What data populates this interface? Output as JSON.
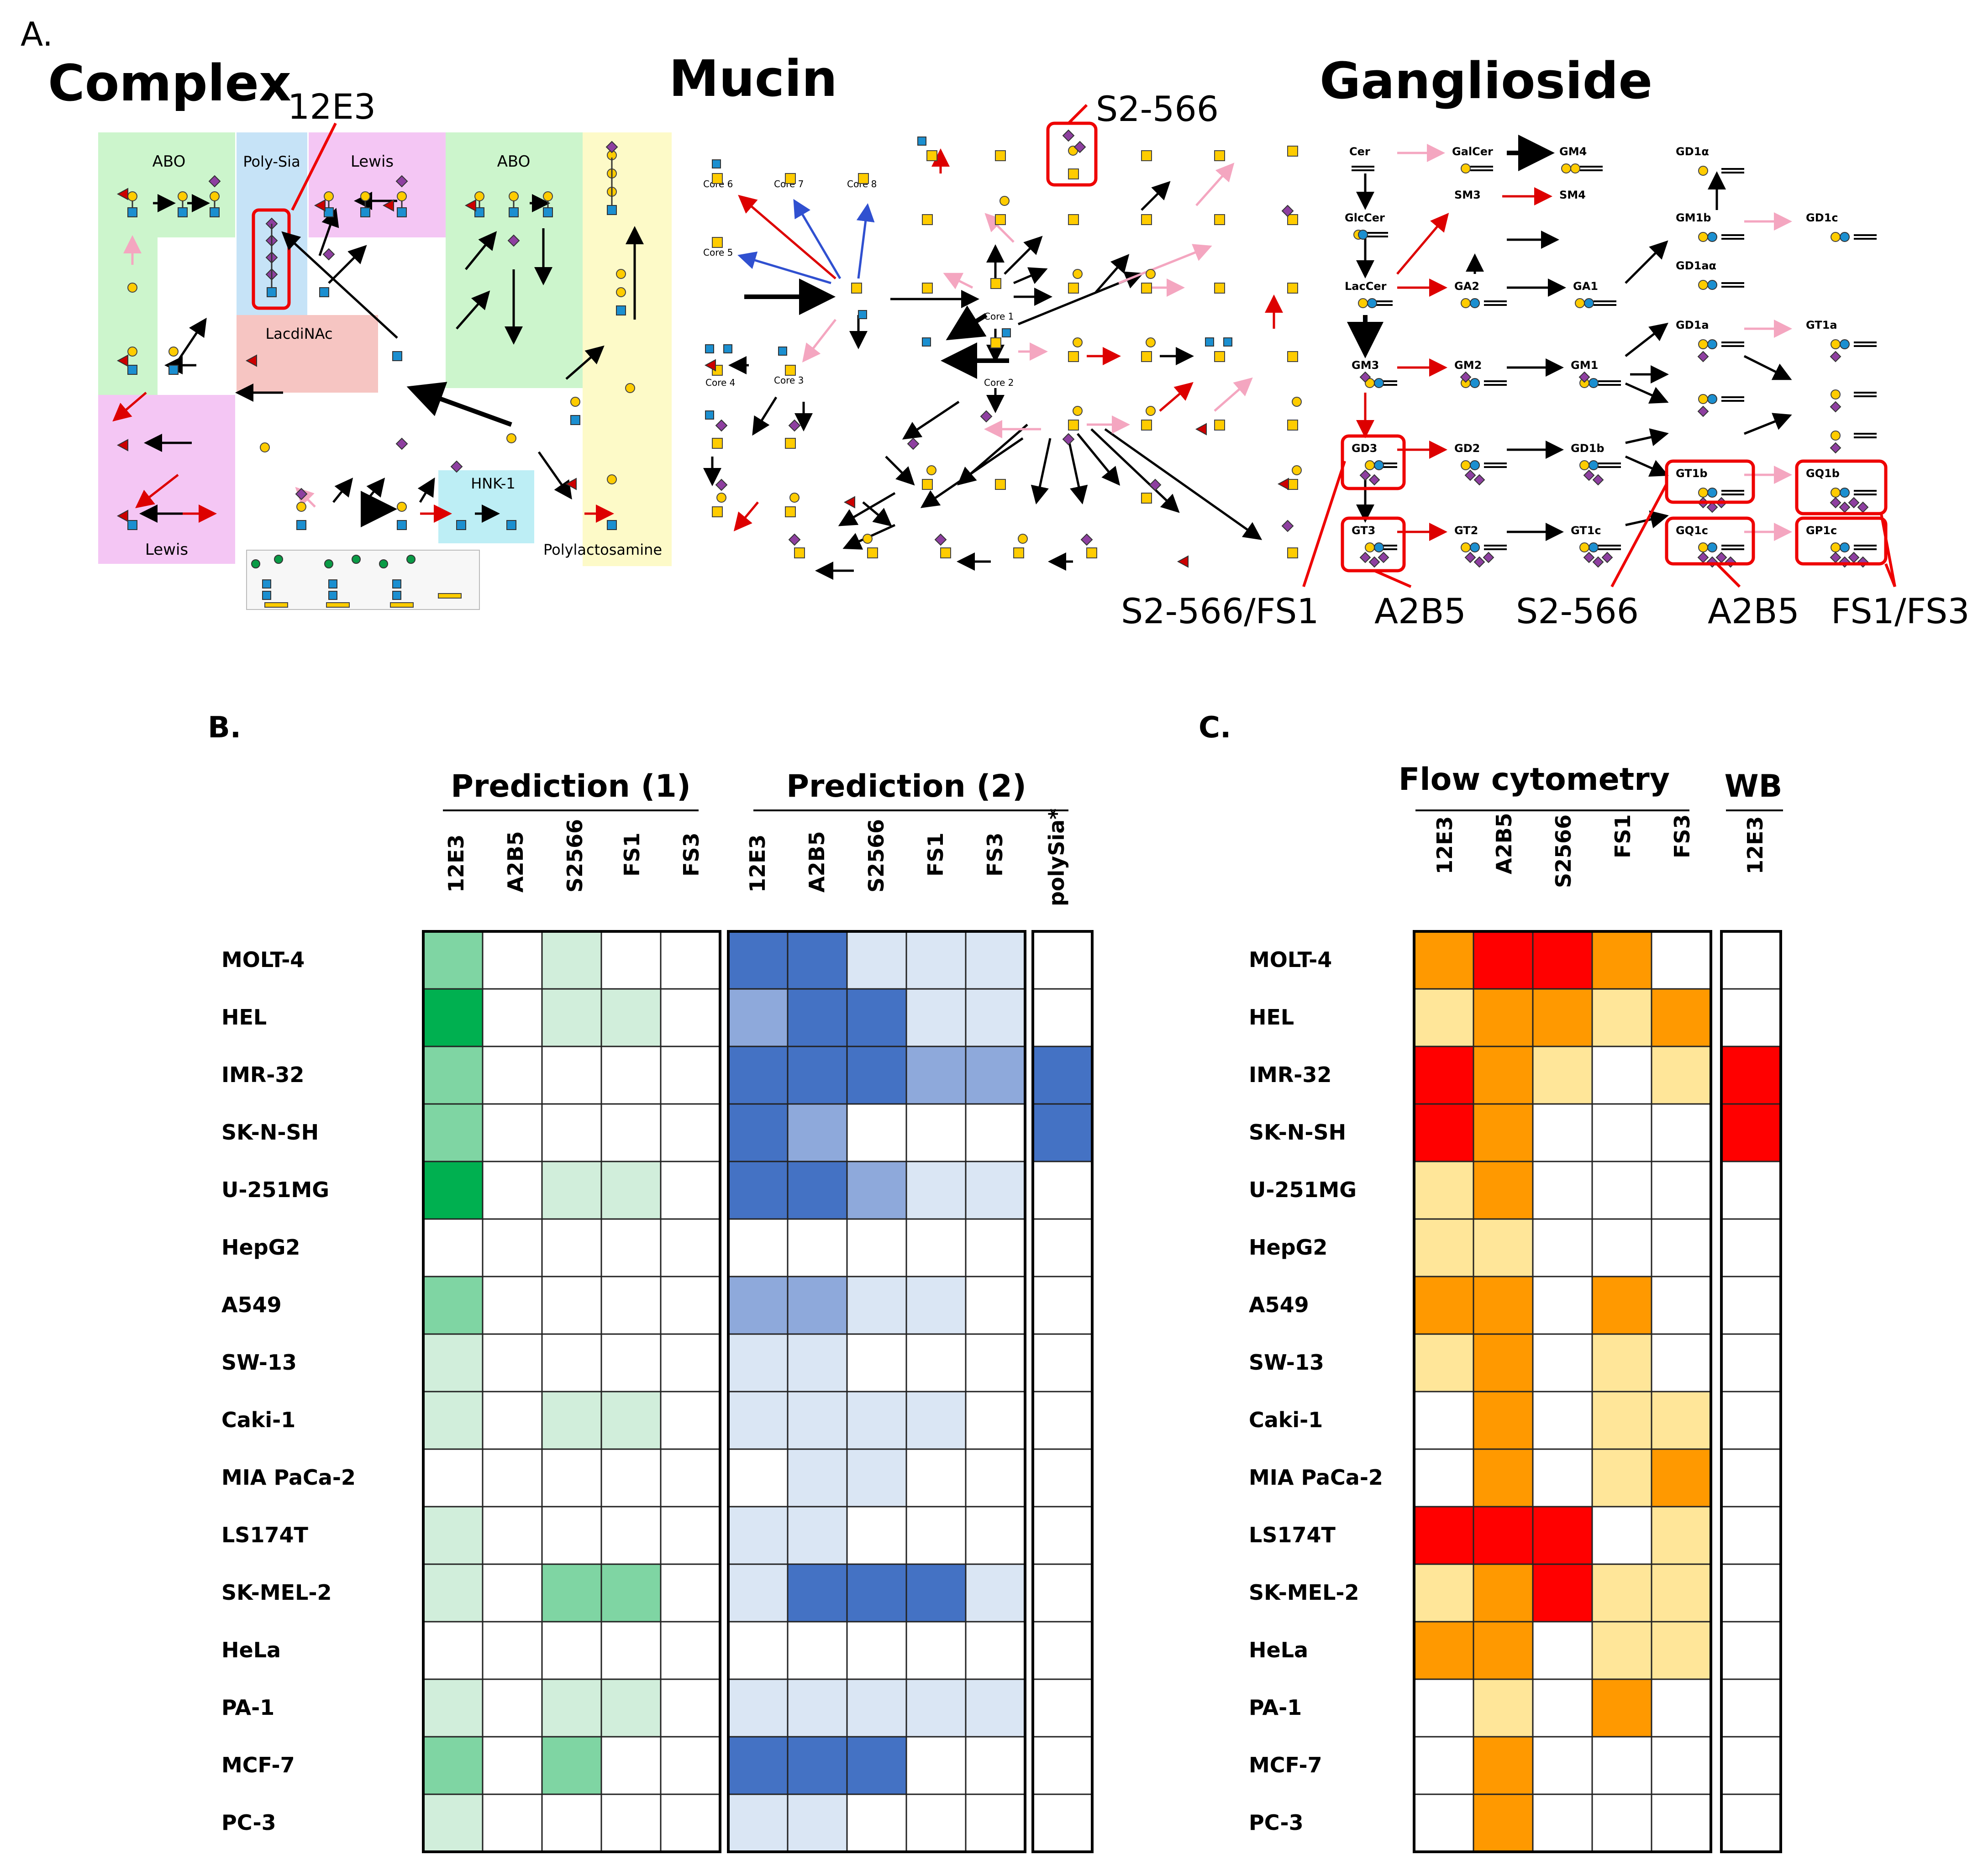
{
  "panels": {
    "a": "A.",
    "b": "B.",
    "c": "C."
  },
  "pathways": {
    "complex": "Complex",
    "mucin": "Mucin",
    "ganglioside": "Ganglioside"
  },
  "complex_regions": {
    "abo_left": "ABO",
    "polysia": "Poly-Sia",
    "lewis_top": "Lewis",
    "abo_right": "ABO",
    "lacdinac": "LacdiNAc",
    "lewis_bottom": "Lewis",
    "hnk1": "HNK-1",
    "polylactosamine": "Polylactosamine"
  },
  "mucin_cores": {
    "core1": "Core 1",
    "core2": "Core 2",
    "core3": "Core 3",
    "core4": "Core 4",
    "core5": "Core 5",
    "core6": "Core 6",
    "core7": "Core 7",
    "core8": "Core 8"
  },
  "gangliosides": {
    "cer": "Cer",
    "galcer": "GalCer",
    "gm4": "GM4",
    "glccer": "GlcCer",
    "sm3": "SM3",
    "sm4": "SM4",
    "laccer": "LacCer",
    "ga2": "GA2",
    "ga1": "GA1",
    "gm3": "GM3",
    "gm2": "GM2",
    "gm1": "GM1",
    "gd3": "GD3",
    "gd2": "GD2",
    "gd1b": "GD1b",
    "gt3": "GT3",
    "gt2": "GT2",
    "gt1c": "GT1c",
    "gd1alpha": "GD1α",
    "gm1b": "GM1b",
    "gd1aalpha": "GD1aα",
    "gd1a": "GD1a",
    "gt1b": "GT1b",
    "gq1c": "GQ1c",
    "gd1c": "GD1c",
    "gt1a": "GT1a",
    "gq1b": "GQ1b",
    "gp1c": "GP1c"
  },
  "antibody_labels": {
    "complex_12e3": "12E3",
    "mucin_s2566": "S2-566",
    "gd3_gt3": "S2-566/FS1",
    "a2b5_left": "A2B5",
    "s2566_mid": "S2-566",
    "a2b5_right": "A2B5",
    "fs1_fs3": "FS1/FS3"
  },
  "panel_b": {
    "group1": "Prediction (1)",
    "group2": "Prediction (2)",
    "pred1_columns": [
      "12E3",
      "A2B5",
      "S2566",
      "FS1",
      "FS3"
    ],
    "pred2_columns": [
      "12E3",
      "A2B5",
      "S2566",
      "FS1",
      "FS3"
    ],
    "polysia_column": "polySia*"
  },
  "panel_c": {
    "group1": "Flow cytometry",
    "group2": "WB",
    "flow_columns": [
      "12E3",
      "A2B5",
      "S2566",
      "FS1",
      "FS3"
    ],
    "wb_columns": [
      "12E3"
    ]
  },
  "cell_lines": [
    "MOLT-4",
    "HEL",
    "IMR-32",
    "SK-N-SH",
    "U-251MG",
    "HepG2",
    "A549",
    "SW-13",
    "Caki-1",
    "MIA PaCa-2",
    "LS174T",
    "SK-MEL-2",
    "HeLa",
    "PA-1",
    "MCF-7",
    "PC-3"
  ],
  "heatmap_levels": {
    "green": [
      "#ffffff",
      "#d1eedb",
      "#7fd5a3",
      "#00b050"
    ],
    "blue": [
      "#ffffff",
      "#dae6f4",
      "#8ea9db",
      "#4472c4"
    ],
    "orange": [
      "#ffffff",
      "#ffe699",
      "#ff9900",
      "#ff0000"
    ]
  },
  "heatmap_values": {
    "pred1": [
      [
        2,
        0,
        1,
        0,
        0
      ],
      [
        3,
        0,
        1,
        1,
        0
      ],
      [
        2,
        0,
        0,
        0,
        0
      ],
      [
        2,
        0,
        0,
        0,
        0
      ],
      [
        3,
        0,
        1,
        1,
        0
      ],
      [
        0,
        0,
        0,
        0,
        0
      ],
      [
        2,
        0,
        0,
        0,
        0
      ],
      [
        1,
        0,
        0,
        0,
        0
      ],
      [
        1,
        0,
        1,
        1,
        0
      ],
      [
        0,
        0,
        0,
        0,
        0
      ],
      [
        1,
        0,
        0,
        0,
        0
      ],
      [
        1,
        0,
        2,
        2,
        0
      ],
      [
        0,
        0,
        0,
        0,
        0
      ],
      [
        1,
        0,
        1,
        1,
        0
      ],
      [
        2,
        0,
        2,
        0,
        0
      ],
      [
        1,
        0,
        0,
        0,
        0
      ]
    ],
    "pred2": [
      [
        3,
        3,
        1,
        1,
        1
      ],
      [
        2,
        3,
        3,
        1,
        1
      ],
      [
        3,
        3,
        3,
        2,
        2
      ],
      [
        3,
        2,
        0,
        0,
        0
      ],
      [
        3,
        3,
        2,
        1,
        1
      ],
      [
        0,
        0,
        0,
        0,
        0
      ],
      [
        2,
        2,
        1,
        1,
        0
      ],
      [
        1,
        1,
        0,
        0,
        0
      ],
      [
        1,
        1,
        1,
        1,
        0
      ],
      [
        0,
        1,
        1,
        0,
        0
      ],
      [
        1,
        1,
        0,
        0,
        0
      ],
      [
        1,
        3,
        3,
        3,
        1
      ],
      [
        0,
        0,
        0,
        0,
        0
      ],
      [
        1,
        1,
        1,
        1,
        1
      ],
      [
        3,
        3,
        3,
        0,
        0
      ],
      [
        1,
        1,
        0,
        0,
        0
      ]
    ],
    "polysia": [
      0,
      0,
      3,
      3,
      0,
      0,
      0,
      0,
      0,
      0,
      0,
      0,
      0,
      0,
      0,
      0
    ],
    "flow": [
      [
        2,
        3,
        3,
        2,
        0
      ],
      [
        1,
        2,
        2,
        1,
        2
      ],
      [
        3,
        2,
        1,
        0,
        1
      ],
      [
        3,
        2,
        0,
        0,
        0
      ],
      [
        1,
        2,
        0,
        0,
        0
      ],
      [
        1,
        1,
        0,
        0,
        0
      ],
      [
        2,
        2,
        0,
        2,
        0
      ],
      [
        1,
        2,
        0,
        1,
        0
      ],
      [
        0,
        2,
        0,
        1,
        1
      ],
      [
        0,
        2,
        0,
        1,
        2
      ],
      [
        3,
        3,
        3,
        0,
        1
      ],
      [
        1,
        2,
        3,
        1,
        1
      ],
      [
        2,
        2,
        0,
        1,
        1
      ],
      [
        0,
        1,
        0,
        2,
        0
      ],
      [
        0,
        2,
        0,
        0,
        0
      ],
      [
        0,
        2,
        0,
        0,
        0
      ]
    ],
    "wb": [
      0,
      0,
      3,
      3,
      0,
      0,
      0,
      0,
      0,
      0,
      0,
      0,
      0,
      0,
      0,
      0
    ]
  }
}
